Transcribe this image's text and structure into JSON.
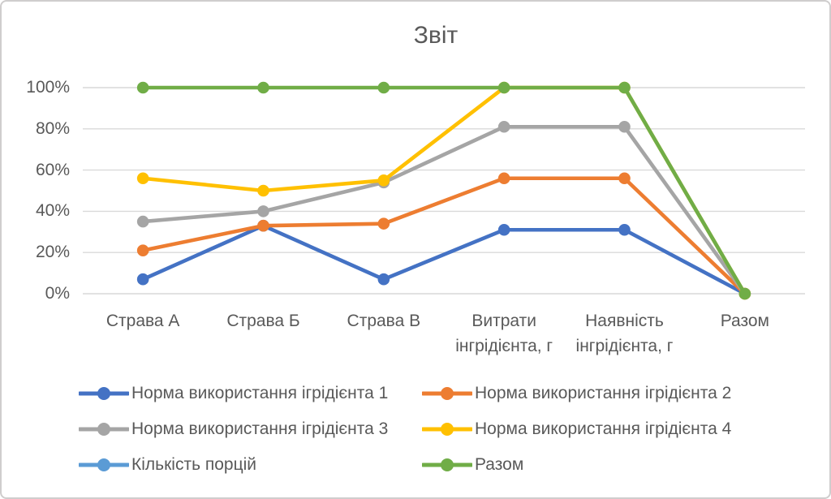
{
  "chart_data": {
    "type": "line",
    "title": "Звіт",
    "categories": [
      "Страва А",
      "Страва Б",
      "Страва В",
      "Витрати інгрідієнта, г",
      "Наявність інгрідієнта, г",
      "Разом"
    ],
    "y_ticks": [
      "100%",
      "80%",
      "60%",
      "40%",
      "20%",
      "0%"
    ],
    "ylim": [
      0,
      100
    ],
    "y_tick_step": 20,
    "grid": "horizontal-only",
    "legend_position": "bottom-two-columns",
    "marker_style": "circle",
    "series": [
      {
        "name": "Норма використання ігрідієнта 1",
        "color": "#4472C4",
        "values": [
          7,
          33,
          7,
          31,
          31,
          0
        ]
      },
      {
        "name": "Норма використання ігрідієнта 2",
        "color": "#ED7D31",
        "values": [
          21,
          33,
          34,
          56,
          56,
          0
        ]
      },
      {
        "name": "Норма використання ігрідієнта 3",
        "color": "#A5A5A5",
        "values": [
          35,
          40,
          54,
          81,
          81,
          0
        ]
      },
      {
        "name": "Норма використання ігрідієнта 4",
        "color": "#FFC000",
        "values": [
          56,
          50,
          55,
          100,
          100,
          0
        ]
      },
      {
        "name": "Кількість порцій",
        "color": "#5B9BD5",
        "values": [
          null,
          null,
          null,
          null,
          null,
          null
        ]
      },
      {
        "name": "Разом",
        "color": "#70AD47",
        "values": [
          100,
          100,
          100,
          100,
          100,
          0
        ]
      }
    ],
    "colors": {
      "text": "#595959",
      "gridline": "#D9D9D9",
      "frame_border": "#CFCDCD",
      "background": "#FFFFFF"
    }
  }
}
